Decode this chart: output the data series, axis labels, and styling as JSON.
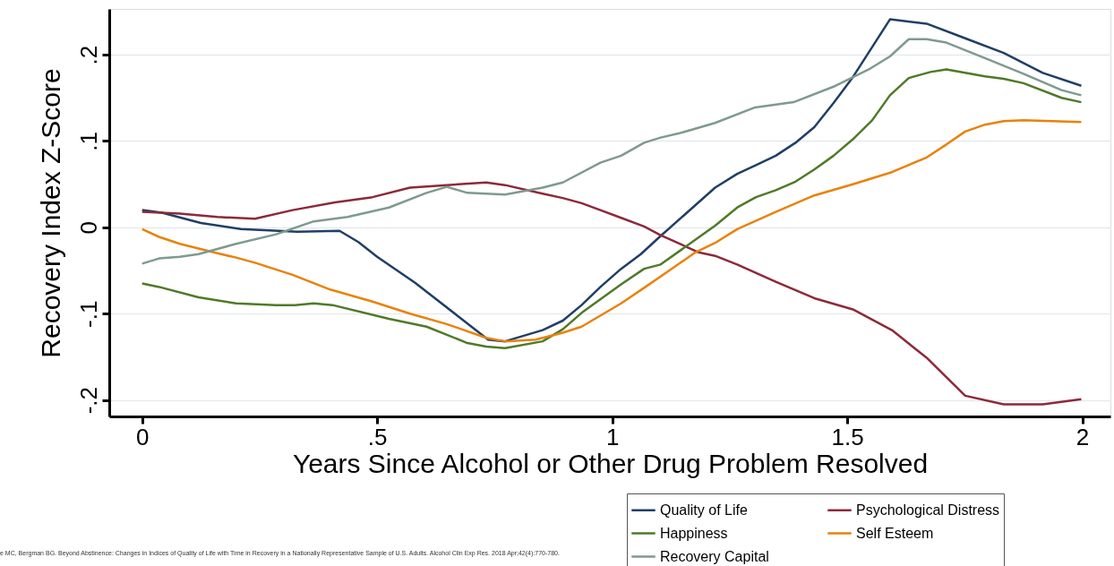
{
  "chart_data": {
    "type": "line",
    "xlabel": "Years Since Alcohol or Other Drug Problem Resolved",
    "ylabel": "Recovery Index Z-Score",
    "xlim": [
      -0.07,
      2.06
    ],
    "ylim": [
      -0.219,
      0.253
    ],
    "xticks": [
      0,
      {
        "value": 0.5,
        "label": ".5"
      },
      1,
      1.5,
      2
    ],
    "yticks": [
      {
        "value": -0.2,
        "label": "-.2"
      },
      {
        "value": -0.1,
        "label": "-.1"
      },
      0,
      {
        "value": 0.1,
        "label": ".1"
      },
      {
        "value": 0.2,
        "label": ".2"
      }
    ],
    "grid": "y",
    "legend": "bottom right",
    "marker": "none",
    "line_style": "solid",
    "annotations": [
      "e MC, Bergman BG. Beyond Abstinence: Changes in Indices of Quality of Life with Time in Recovery in a Nationally Representative Sample of U.S. Adults. Alcohol Clin Exp Res. 2018 Apr;42(4):770-780."
    ],
    "series": [
      {
        "name": "Quality of Life",
        "color": "#1f3f66",
        "x": [
          0,
          0.042,
          0.125,
          0.21,
          0.33,
          0.42,
          0.46,
          0.5,
          0.58,
          0.67,
          0.736,
          0.772,
          0.852,
          0.895,
          0.935,
          0.975,
          1.019,
          1.061,
          1.103,
          1.219,
          1.266,
          1.306,
          1.348,
          1.39,
          1.43,
          1.471,
          1.512,
          1.591,
          1.669,
          1.751,
          1.833,
          1.916,
          1.998
        ],
        "values": [
          0.02,
          0.017,
          0.005,
          -0.002,
          -0.005,
          -0.004,
          -0.017,
          -0.034,
          -0.064,
          -0.102,
          -0.13,
          -0.132,
          -0.119,
          -0.108,
          -0.09,
          -0.069,
          -0.048,
          -0.031,
          -0.01,
          0.046,
          0.062,
          0.072,
          0.083,
          0.098,
          0.116,
          0.144,
          0.174,
          0.241,
          0.236,
          0.219,
          0.202,
          0.179,
          0.164
        ]
      },
      {
        "name": "Psychological Distress",
        "color": "#8b2a3a",
        "x": [
          0,
          0.08,
          0.16,
          0.24,
          0.32,
          0.41,
          0.49,
          0.57,
          0.648,
          0.732,
          0.772,
          0.852,
          0.895,
          0.935,
          0.975,
          1.019,
          1.068,
          1.103,
          1.184,
          1.219,
          1.266,
          1.348,
          1.43,
          1.512,
          1.595,
          1.669,
          1.751,
          1.833,
          1.916,
          1.998
        ],
        "values": [
          0.018,
          0.016,
          0.012,
          0.01,
          0.02,
          0.029,
          0.035,
          0.046,
          0.049,
          0.052,
          0.049,
          0.039,
          0.034,
          0.028,
          0.02,
          0.011,
          0.001,
          -0.009,
          -0.029,
          -0.033,
          -0.043,
          -0.063,
          -0.082,
          -0.095,
          -0.119,
          -0.151,
          -0.195,
          -0.205,
          -0.205,
          -0.199
        ]
      },
      {
        "name": "Happiness",
        "color": "#4f7a28",
        "x": [
          0,
          0.036,
          0.12,
          0.2,
          0.285,
          0.325,
          0.365,
          0.405,
          0.525,
          0.605,
          0.692,
          0.732,
          0.772,
          0.852,
          0.895,
          0.935,
          1.019,
          1.068,
          1.103,
          1.219,
          1.266,
          1.306,
          1.348,
          1.39,
          1.43,
          1.471,
          1.512,
          1.553,
          1.591,
          1.631,
          1.677,
          1.711,
          1.793,
          1.833,
          1.875,
          1.956,
          1.998
        ],
        "values": [
          -0.065,
          -0.069,
          -0.081,
          -0.088,
          -0.09,
          -0.09,
          -0.088,
          -0.09,
          -0.106,
          -0.115,
          -0.134,
          -0.138,
          -0.14,
          -0.132,
          -0.118,
          -0.099,
          -0.066,
          -0.048,
          -0.043,
          0.002,
          0.023,
          0.035,
          0.043,
          0.053,
          0.067,
          0.083,
          0.102,
          0.124,
          0.153,
          0.173,
          0.18,
          0.183,
          0.175,
          0.172,
          0.167,
          0.15,
          0.145
        ]
      },
      {
        "name": "Self Esteem",
        "color": "#e8820c",
        "x": [
          0,
          0.036,
          0.08,
          0.16,
          0.2,
          0.24,
          0.32,
          0.4,
          0.49,
          0.57,
          0.648,
          0.732,
          0.772,
          0.837,
          0.895,
          0.935,
          1.019,
          1.068,
          1.103,
          1.177,
          1.219,
          1.266,
          1.348,
          1.43,
          1.512,
          1.595,
          1.669,
          1.711,
          1.751,
          1.793,
          1.833,
          1.875,
          1.998
        ],
        "values": [
          -0.002,
          -0.011,
          -0.019,
          -0.03,
          -0.035,
          -0.041,
          -0.055,
          -0.072,
          -0.086,
          -0.1,
          -0.112,
          -0.128,
          -0.132,
          -0.13,
          -0.122,
          -0.115,
          -0.088,
          -0.07,
          -0.057,
          -0.029,
          -0.018,
          -0.002,
          0.018,
          0.037,
          0.05,
          0.064,
          0.081,
          0.096,
          0.111,
          0.119,
          0.123,
          0.124,
          0.122
        ]
      },
      {
        "name": "Recovery Capital",
        "color": "#7f9a8e",
        "x": [
          0,
          0.036,
          0.08,
          0.12,
          0.2,
          0.285,
          0.365,
          0.437,
          0.525,
          0.605,
          0.648,
          0.692,
          0.772,
          0.852,
          0.895,
          0.975,
          1.019,
          1.068,
          1.103,
          1.143,
          1.219,
          1.304,
          1.386,
          1.471,
          1.549,
          1.591,
          1.631,
          1.669,
          1.711,
          1.793,
          1.875,
          1.956,
          1.998
        ],
        "values": [
          -0.042,
          -0.036,
          -0.034,
          -0.031,
          -0.019,
          -0.008,
          0.007,
          0.012,
          0.023,
          0.04,
          0.047,
          0.04,
          0.038,
          0.046,
          0.052,
          0.075,
          0.083,
          0.098,
          0.104,
          0.109,
          0.121,
          0.139,
          0.145,
          0.163,
          0.184,
          0.198,
          0.218,
          0.218,
          0.214,
          0.196,
          0.178,
          0.159,
          0.153
        ]
      }
    ]
  }
}
